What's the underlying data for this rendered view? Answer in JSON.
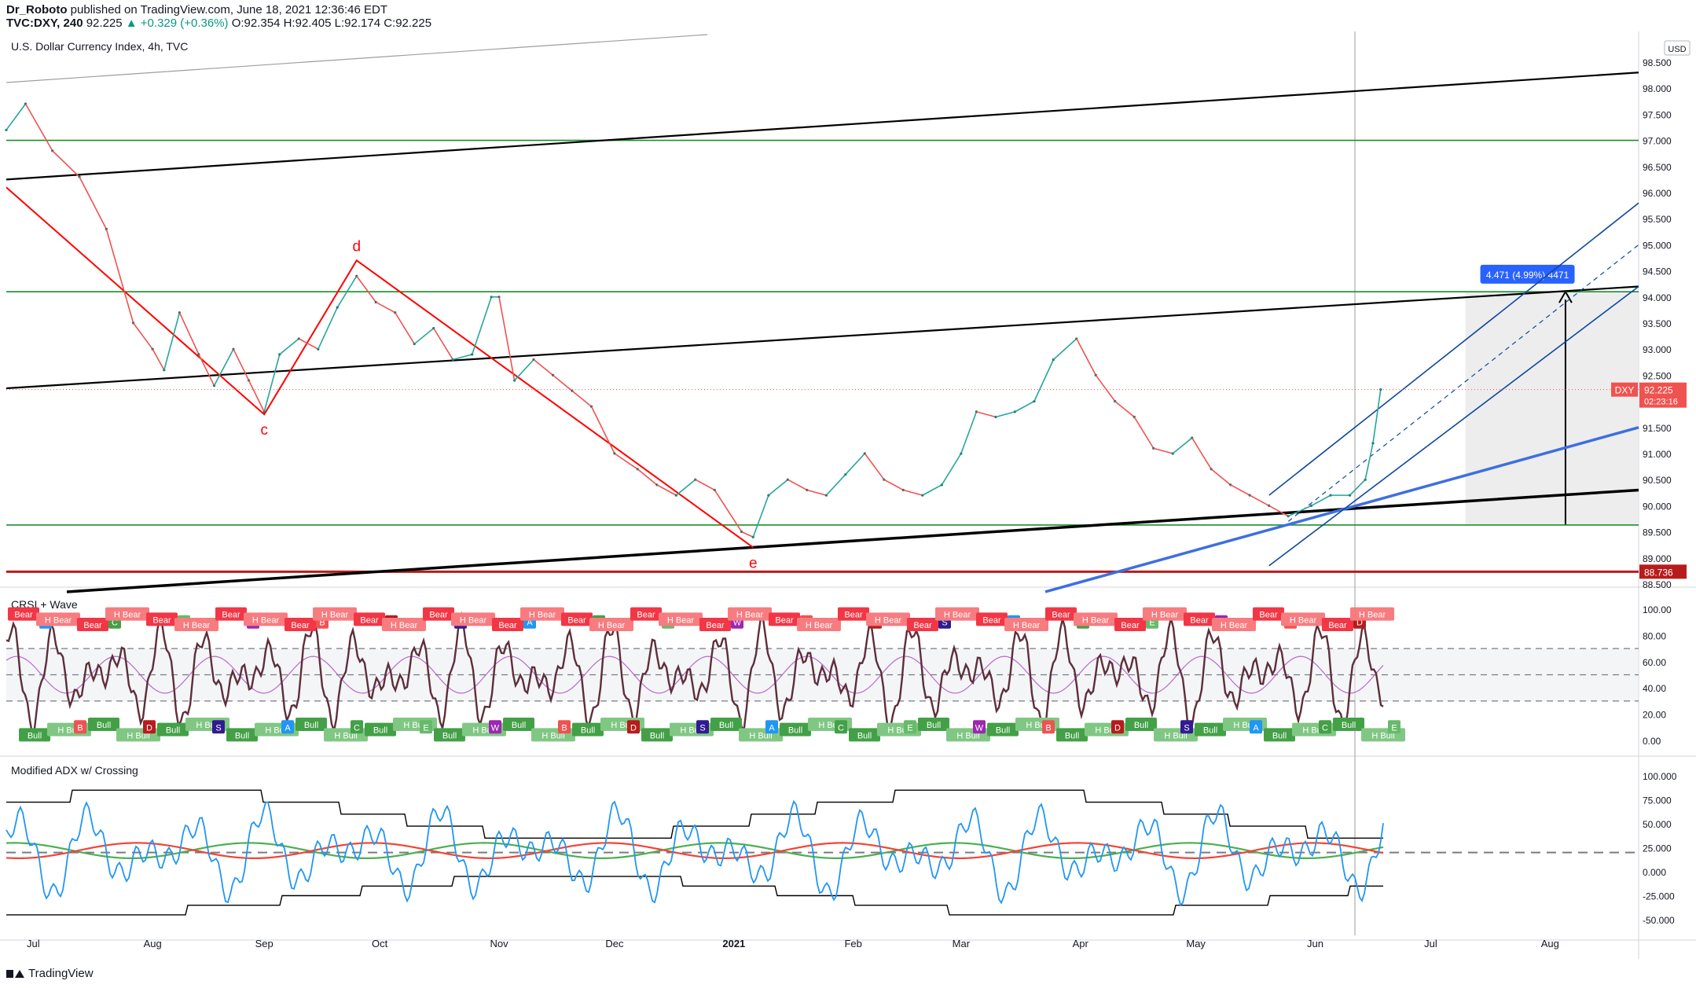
{
  "header": {
    "author": "Dr_Roboto",
    "published": "published on TradingView.com, June 18, 2021 12:36:46 EDT",
    "symbol_line": "TVC:DXY, 240",
    "price": "92.225",
    "change": "▲ +0.329 (+0.36%)",
    "ohlc": "O:92.354 H:92.405 L:92.174 C:92.225"
  },
  "footer": {
    "brand": "TradingView"
  },
  "colors": {
    "price_line": "#26a69a",
    "price_down": "#ef5350",
    "trendline_black": "#000000",
    "pattern_red": "#ff0000",
    "support_green": "#1b8e2d",
    "level_red": "#b71c1c",
    "channel_blue": "#0d47a1",
    "trend_blue": "#3d6fe0",
    "label_blue": "#2962ff",
    "rsi_line": "#5d2f3a",
    "adx_blue": "#2196f3",
    "adx_green": "#4caf50",
    "adx_red": "#f44336"
  },
  "chart_data": [
    {
      "type": "line",
      "title": "U.S. Dollar Currency Index, 4h, TVC",
      "currency": "USD",
      "x_labels": [
        "Jul",
        "Aug",
        "Sep",
        "Oct",
        "Nov",
        "Dec",
        "2021",
        "Feb",
        "Mar",
        "Apr",
        "May",
        "Jun",
        "Jul",
        "Aug"
      ],
      "ylim": [
        88.5,
        98.5
      ],
      "y_ticks": [
        "88.500",
        "89.000",
        "89.500",
        "90.000",
        "90.500",
        "91.000",
        "91.500",
        "92.000",
        "92.500",
        "93.000",
        "93.500",
        "94.000",
        "94.500",
        "95.000",
        "95.500",
        "96.000",
        "96.500",
        "97.000",
        "97.500",
        "98.000",
        "98.500"
      ],
      "series": [
        {
          "name": "DXY",
          "x": [
            "2020-06-26",
            "2020-07-01",
            "2020-07-08",
            "2020-07-15",
            "2020-07-22",
            "2020-07-29",
            "2020-08-03",
            "2020-08-06",
            "2020-08-10",
            "2020-08-15",
            "2020-08-19",
            "2020-08-24",
            "2020-08-28",
            "2020-09-01",
            "2020-09-05",
            "2020-09-10",
            "2020-09-15",
            "2020-09-20",
            "2020-09-25",
            "2020-09-30",
            "2020-10-05",
            "2020-10-10",
            "2020-10-15",
            "2020-10-20",
            "2020-10-25",
            "2020-10-30",
            "2020-11-01",
            "2020-11-05",
            "2020-11-10",
            "2020-11-15",
            "2020-11-20",
            "2020-11-25",
            "2020-12-01",
            "2020-12-07",
            "2020-12-12",
            "2020-12-17",
            "2020-12-22",
            "2020-12-27",
            "2021-01-03",
            "2021-01-06",
            "2021-01-10",
            "2021-01-15",
            "2021-01-20",
            "2021-01-25",
            "2021-01-30",
            "2021-02-04",
            "2021-02-09",
            "2021-02-14",
            "2021-02-19",
            "2021-02-24",
            "2021-03-01",
            "2021-03-05",
            "2021-03-10",
            "2021-03-15",
            "2021-03-20",
            "2021-03-25",
            "2021-03-31",
            "2021-04-05",
            "2021-04-10",
            "2021-04-15",
            "2021-04-20",
            "2021-04-25",
            "2021-04-30",
            "2021-05-05",
            "2021-05-10",
            "2021-05-15",
            "2021-05-20",
            "2021-05-25",
            "2021-05-31",
            "2021-06-05",
            "2021-06-10",
            "2021-06-14",
            "2021-06-16",
            "2021-06-18"
          ],
          "values": [
            97.2,
            97.7,
            96.8,
            96.3,
            95.3,
            93.5,
            93.0,
            92.6,
            93.7,
            92.9,
            92.3,
            93.0,
            92.4,
            91.8,
            92.9,
            93.2,
            93.0,
            93.8,
            94.4,
            93.9,
            93.7,
            93.1,
            93.4,
            92.8,
            92.9,
            94.0,
            94.0,
            92.4,
            92.8,
            92.5,
            92.2,
            91.9,
            91.0,
            90.7,
            90.4,
            90.2,
            90.5,
            90.3,
            89.5,
            89.4,
            90.2,
            90.5,
            90.3,
            90.2,
            90.6,
            91.0,
            90.5,
            90.3,
            90.2,
            90.4,
            91.0,
            91.8,
            91.7,
            91.8,
            92.0,
            92.8,
            93.2,
            92.5,
            92.0,
            91.7,
            91.1,
            91.0,
            91.3,
            90.7,
            90.4,
            90.2,
            90.0,
            89.8,
            90.0,
            90.2,
            90.2,
            90.5,
            91.2,
            92.225
          ]
        }
      ],
      "annotations": {
        "wave_labels": [
          "c",
          "d",
          "e"
        ],
        "last_price_tag": "DXY",
        "last_price": "92.225",
        "countdown": "02:23:16",
        "level_tag": "88.736",
        "measure_box": "4.471 (4.99%) 4471"
      }
    },
    {
      "type": "line",
      "title": "CRSI + Wave",
      "ylim": [
        0,
        100
      ],
      "y_ticks": [
        "0.00",
        "20.00",
        "40.00",
        "60.00",
        "80.00",
        "100.00"
      ],
      "levels": [
        30,
        50,
        70
      ],
      "signal_labels": [
        "Bear",
        "H Bear",
        "Bull",
        "H Bull",
        "A",
        "B",
        "C",
        "D",
        "E",
        "S",
        "W"
      ]
    },
    {
      "type": "line",
      "title": "Modified ADX w/ Crossing",
      "ylim": [
        -50,
        100
      ],
      "y_ticks": [
        "-50.000",
        "-25.000",
        "0.000",
        "25.000",
        "50.000",
        "75.000",
        "100.000"
      ],
      "levels": [
        20
      ]
    }
  ]
}
